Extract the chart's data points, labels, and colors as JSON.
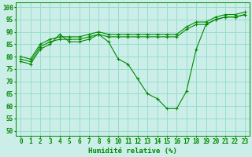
{
  "title": "",
  "xlabel": "Humidité relative (%)",
  "ylabel": "",
  "background_color": "#cceee8",
  "grid_color": "#99ddcc",
  "line_color": "#008800",
  "xlim": [
    -0.5,
    23.5
  ],
  "ylim": [
    48,
    102
  ],
  "yticks": [
    50,
    55,
    60,
    65,
    70,
    75,
    80,
    85,
    90,
    95,
    100
  ],
  "xticks": [
    0,
    1,
    2,
    3,
    4,
    5,
    6,
    7,
    8,
    9,
    10,
    11,
    12,
    13,
    14,
    15,
    16,
    17,
    18,
    19,
    20,
    21,
    22,
    23
  ],
  "series1_x": [
    0,
    1,
    2,
    3,
    4,
    5,
    6,
    7,
    8,
    9,
    10,
    11,
    12,
    13,
    14,
    15,
    16,
    17,
    18,
    19,
    20,
    21,
    22,
    23
  ],
  "series1_y": [
    78,
    77,
    83,
    85,
    89,
    86,
    86,
    87,
    89,
    86,
    79,
    77,
    71,
    65,
    63,
    59,
    59,
    66,
    83,
    93,
    95,
    96,
    96,
    97
  ],
  "series2_x": [
    0,
    1,
    2,
    3,
    4,
    5,
    6,
    7,
    8,
    9,
    10,
    11,
    12,
    13,
    14,
    15,
    16,
    17,
    18,
    19,
    20,
    21,
    22,
    23
  ],
  "series2_y": [
    79,
    78,
    84,
    86,
    87,
    87,
    87,
    88,
    89,
    88,
    88,
    88,
    88,
    88,
    88,
    88,
    88,
    91,
    93,
    93,
    95,
    96,
    96,
    97
  ],
  "series3_x": [
    0,
    1,
    2,
    3,
    4,
    5,
    6,
    7,
    8,
    9,
    10,
    11,
    12,
    13,
    14,
    15,
    16,
    17,
    18,
    19,
    20,
    21,
    22,
    23
  ],
  "series3_y": [
    80,
    79,
    85,
    87,
    88,
    88,
    88,
    89,
    90,
    89,
    89,
    89,
    89,
    89,
    89,
    89,
    89,
    92,
    94,
    94,
    96,
    97,
    97,
    98
  ]
}
